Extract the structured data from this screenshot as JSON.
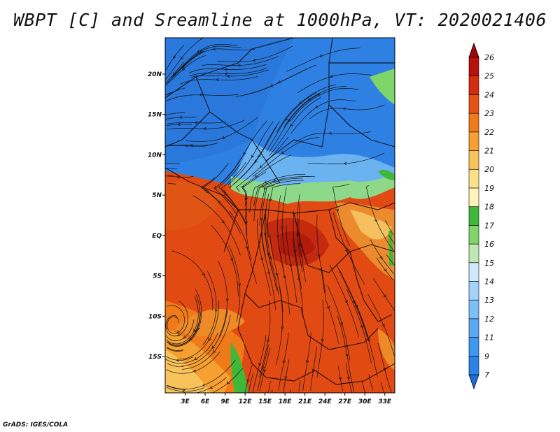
{
  "title": "WBPT [C] and Sreamline at 1000hPa, VT: 2020021406",
  "footer": "GrADS: IGES/COLA",
  "map": {
    "lat_ticks": [
      "20N",
      "15N",
      "10N",
      "5N",
      "EQ",
      "5S",
      "10S",
      "15S"
    ],
    "lon_ticks": [
      "3E",
      "6E",
      "9E",
      "12E",
      "15E",
      "18E",
      "21E",
      "24E",
      "27E",
      "30E",
      "33E"
    ],
    "lat_range": [
      -19.5,
      24.5
    ],
    "lon_range": [
      0,
      34.5
    ]
  },
  "colorbar": {
    "labels": [
      "7",
      "9",
      "11",
      "12",
      "13",
      "14",
      "15",
      "16",
      "17",
      "18",
      "19",
      "20",
      "21",
      "22",
      "23",
      "24",
      "25",
      "26"
    ],
    "colors": [
      "#1e6ed9",
      "#2b82e8",
      "#3d98f0",
      "#5aaaf5",
      "#7dbff7",
      "#a4d3f9",
      "#cfe8fb",
      "#bfe9b4",
      "#7fd66a",
      "#3fb83a",
      "#fff3b8",
      "#fde08a",
      "#f9c35c",
      "#f5a030",
      "#ef7a1a",
      "#e65312",
      "#d42c0c",
      "#b8100a",
      "#a00808"
    ]
  }
}
